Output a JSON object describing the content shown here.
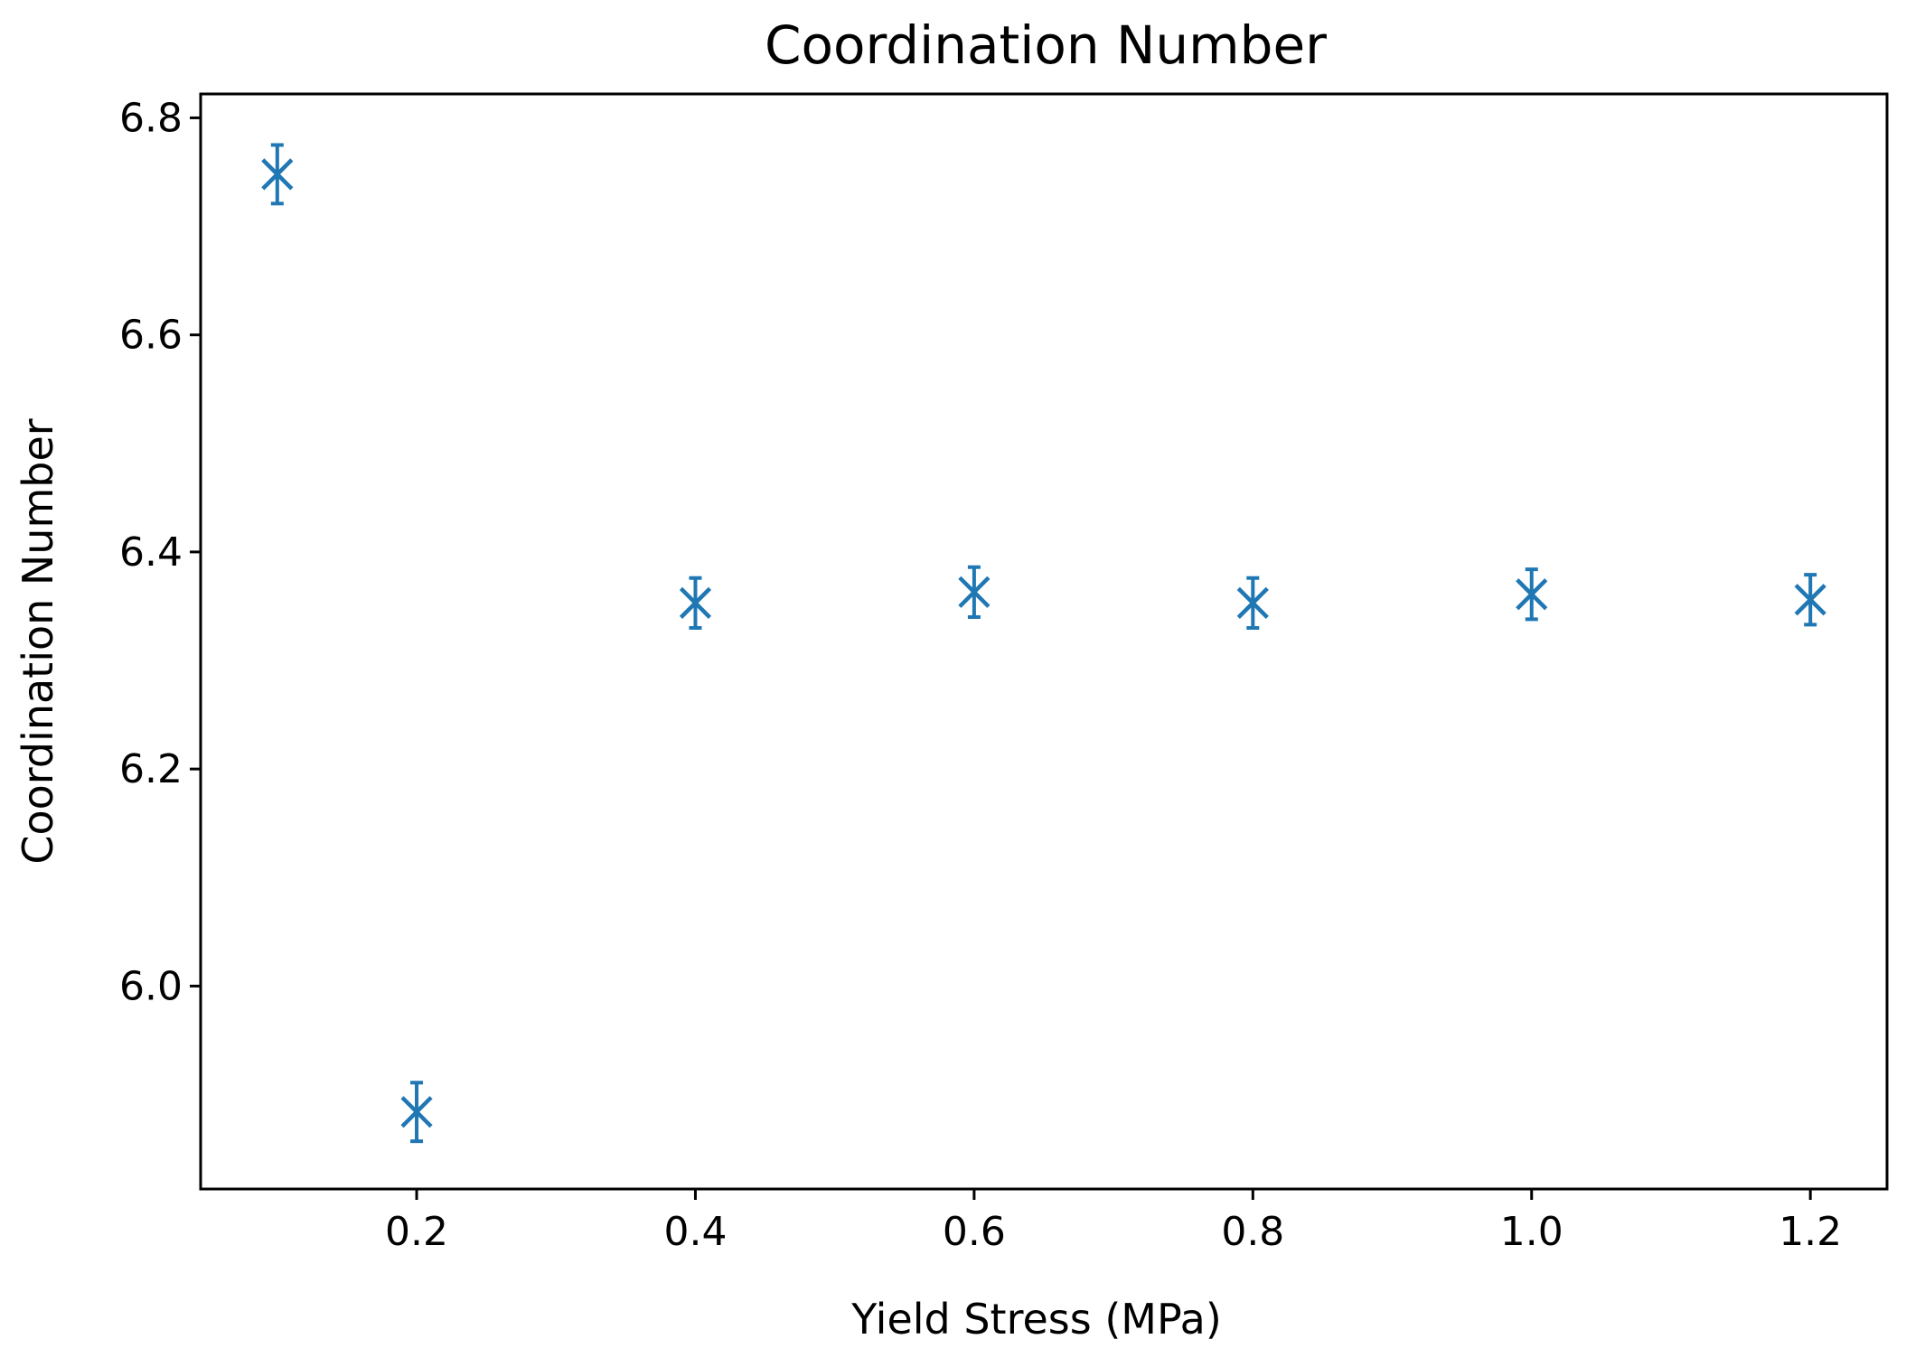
{
  "chart_data": {
    "type": "scatter",
    "title": "Coordination Number",
    "xlabel": "Yield Stress (MPa)",
    "ylabel": "Coordination Number",
    "xlim": [
      0.045,
      1.255
    ],
    "ylim": [
      5.813,
      6.822
    ],
    "xticks": [
      0.2,
      0.4,
      0.6,
      0.8,
      1.0,
      1.2
    ],
    "xtick_labels": [
      "0.2",
      "0.4",
      "0.6",
      "0.8",
      "1.0",
      "1.2"
    ],
    "yticks": [
      6.0,
      6.2,
      6.4,
      6.6,
      6.8
    ],
    "ytick_labels": [
      "6.0",
      "6.2",
      "6.4",
      "6.6",
      "6.8"
    ],
    "grid": false,
    "marker": "x",
    "color": "#1f77b4",
    "series": [
      {
        "x": [
          0.1,
          0.2,
          0.4,
          0.6,
          0.8,
          1.0,
          1.2
        ],
        "y": [
          6.748,
          5.884,
          6.353,
          6.363,
          6.353,
          6.361,
          6.356
        ],
        "yerr": [
          0.027,
          0.027,
          0.023,
          0.023,
          0.023,
          0.023,
          0.023
        ]
      }
    ]
  }
}
